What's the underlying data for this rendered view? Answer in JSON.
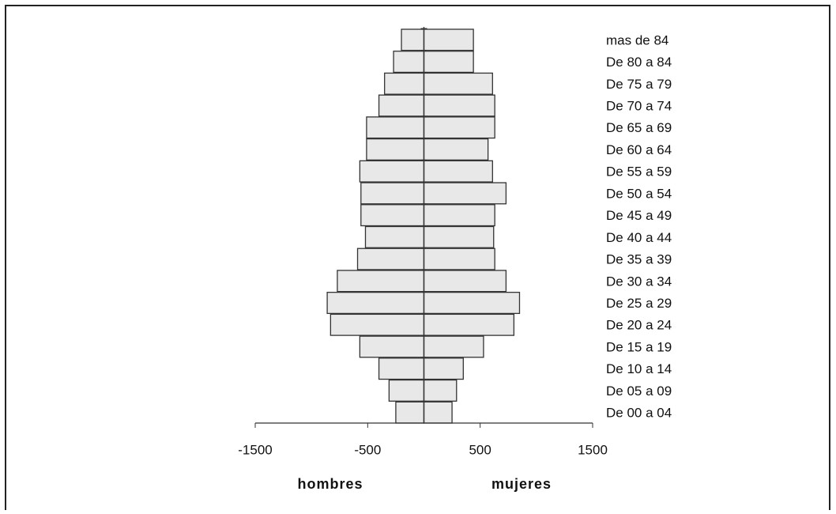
{
  "chart_data": {
    "type": "bar",
    "orientation": "horizontal",
    "categories": [
      "mas de 84",
      "De 80 a 84",
      "De 75 a 79",
      "De 70 a 74",
      "De 65 a 69",
      "De 60 a 64",
      "De 55 a 59",
      "De 50 a 54",
      "De 45 a 49",
      "De 40 a 44",
      "De 35 a 39",
      "De 30 a 34",
      "De 25 a 29",
      "De 20 a 24",
      "De 15 a 19",
      "De 10 a 14",
      "De 05 a 09",
      "De 00 a 04"
    ],
    "series": [
      {
        "name": "hombres",
        "color": "#e8e8e8",
        "values": [
          -200,
          -270,
          -350,
          -400,
          -510,
          -510,
          -570,
          -560,
          -560,
          -520,
          -590,
          -770,
          -860,
          -830,
          -570,
          -400,
          -310,
          -250
        ]
      },
      {
        "name": "mujeres",
        "color": "#e8e8e8",
        "values": [
          440,
          440,
          610,
          630,
          630,
          570,
          610,
          730,
          630,
          620,
          630,
          730,
          850,
          800,
          530,
          350,
          290,
          250
        ]
      }
    ],
    "xlim": [
      -1500,
      1500
    ],
    "xticks": [
      -1500,
      -500,
      500,
      1500
    ]
  }
}
